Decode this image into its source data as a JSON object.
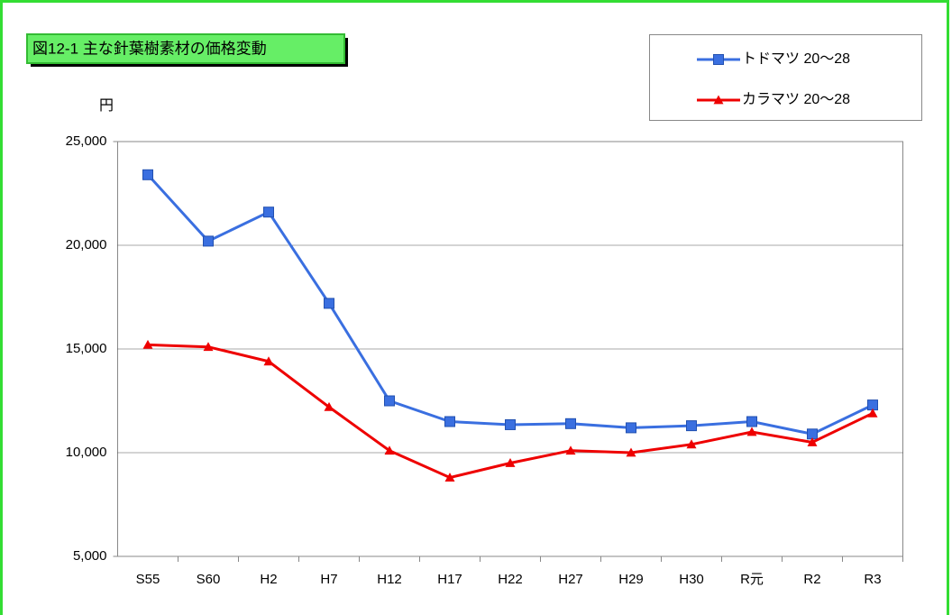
{
  "chart_data": {
    "type": "line",
    "title": "図12-1 主な針葉樹素材の価格変動",
    "y_label": "円",
    "categories": [
      "S55",
      "S60",
      "H2",
      "H7",
      "H12",
      "H17",
      "H22",
      "H27",
      "H29",
      "H30",
      "R元",
      "R2",
      "R3"
    ],
    "series": [
      {
        "name": "トドマツ 20～28",
        "color": "#3a6fe0",
        "marker": "square",
        "values": [
          23400,
          20200,
          21600,
          17200,
          12500,
          11500,
          11350,
          11400,
          11200,
          11300,
          11500,
          10900,
          12300
        ]
      },
      {
        "name": "カラマツ 20～28",
        "color": "#ee0000",
        "marker": "triangle",
        "values": [
          15200,
          15100,
          14400,
          12200,
          10100,
          8800,
          9500,
          10100,
          10000,
          10400,
          11000,
          10500,
          11900
        ]
      }
    ],
    "ylim": [
      5000,
      25000
    ],
    "yticks": [
      {
        "value": 5000,
        "label": "5,000"
      },
      {
        "value": 10000,
        "label": "10,000"
      },
      {
        "value": 15000,
        "label": "15,000"
      },
      {
        "value": 20000,
        "label": "20,000"
      },
      {
        "value": 25000,
        "label": "25,000"
      }
    ],
    "grid": true,
    "legend": "top-right"
  }
}
